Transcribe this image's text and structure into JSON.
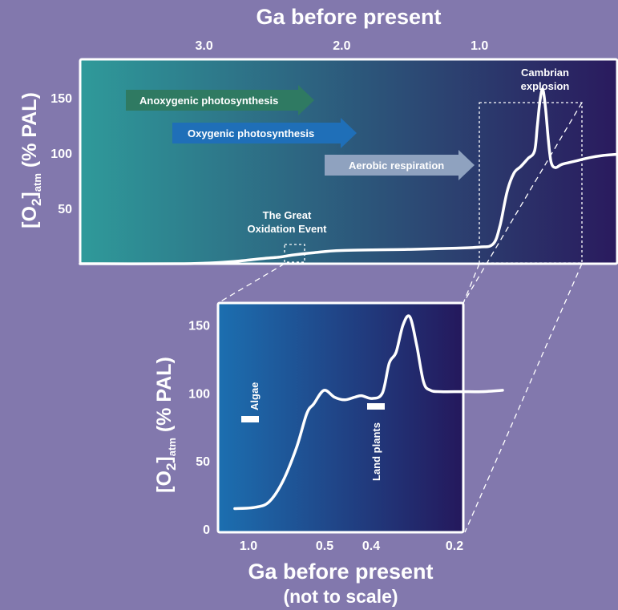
{
  "colors": {
    "background": "#8278ad",
    "panel_start": "#2f9a9a",
    "panel_end": "#2a1a5e",
    "inset_start": "#1c6fb0",
    "inset_end": "#24185c",
    "curve": "#ffffff",
    "arrow_anoxygenic": "#2f7a62",
    "arrow_oxygenic": "#1f6fb8",
    "arrow_aerobic": "#8fa2bf"
  },
  "chart_data": [
    {
      "type": "line",
      "xlabel": "Ga before present",
      "ylabel_main": "[O",
      "ylabel_sub": "2",
      "ylabel_sub2": "atm",
      "ylabel_tail": " (% PAL)",
      "x_ticks": [
        "3.0",
        "2.0",
        "1.0"
      ],
      "x_tick_values": [
        3.0,
        2.0,
        1.0
      ],
      "y_ticks": [
        "50",
        "100",
        "150"
      ],
      "y_tick_values": [
        50,
        100,
        150
      ],
      "xlim": [
        3.9,
        0.0
      ],
      "ylim": [
        0,
        185
      ],
      "x_reversed": true,
      "series": [
        {
          "x": [
            3.9,
            3.2,
            2.9,
            2.7,
            2.55,
            2.45,
            2.35,
            2.2,
            2.0,
            1.5,
            1.2,
            1.0,
            0.9,
            0.85,
            0.8,
            0.75,
            0.7,
            0.65,
            0.6,
            0.58,
            0.56,
            0.54,
            0.52,
            0.5,
            0.48,
            0.45,
            0.4,
            0.3,
            0.2,
            0.1,
            0.0
          ],
          "y": [
            0,
            0,
            1,
            3,
            5,
            6,
            8,
            10,
            12,
            13,
            14,
            15,
            18,
            35,
            65,
            82,
            88,
            95,
            102,
            125,
            148,
            158,
            140,
            112,
            92,
            87,
            90,
            93,
            96,
            98,
            99
          ]
        }
      ],
      "annotations": [
        {
          "id": "anoxygenic",
          "text": "Anoxygenic photosynthesis"
        },
        {
          "id": "oxygenic",
          "text": "Oxygenic photosynthesis"
        },
        {
          "id": "aerobic",
          "text": "Aerobic respiration"
        },
        {
          "id": "goe",
          "lines": [
            "The Great",
            "Oxidation Event"
          ]
        },
        {
          "id": "cambrian",
          "lines": [
            "Cambrian",
            "explosion"
          ]
        }
      ]
    },
    {
      "type": "line",
      "xlabel": "Ga before present",
      "xlabel_sub": "(not to scale)",
      "ylabel_main": "[O",
      "ylabel_sub": "2",
      "ylabel_sub2": "atm",
      "ylabel_tail": " (% PAL)",
      "x_ticks": [
        "1.0",
        "0.5",
        "0.4",
        "0.2"
      ],
      "y_ticks": [
        "0",
        "50",
        "100",
        "150"
      ],
      "y_tick_values": [
        0,
        50,
        100,
        150
      ],
      "ylim": [
        0,
        165
      ],
      "series": [
        {
          "x_index": [
            0,
            0.3,
            0.5,
            0.7,
            0.9,
            1.05,
            1.15,
            1.3,
            1.45,
            1.6,
            1.75,
            1.85,
            2.0,
            2.15,
            2.25,
            2.35,
            2.45,
            2.55,
            2.65,
            2.75,
            2.85,
            3.0,
            3.3,
            3.6,
            3.9
          ],
          "y": [
            15,
            16,
            20,
            35,
            60,
            85,
            92,
            102,
            97,
            95,
            97,
            98,
            96,
            100,
            122,
            130,
            150,
            156,
            135,
            108,
            102,
            101,
            101,
            101,
            102
          ]
        }
      ],
      "annotations": [
        {
          "id": "algae",
          "text": "Algae"
        },
        {
          "id": "land",
          "text": "Land plants"
        }
      ]
    }
  ]
}
